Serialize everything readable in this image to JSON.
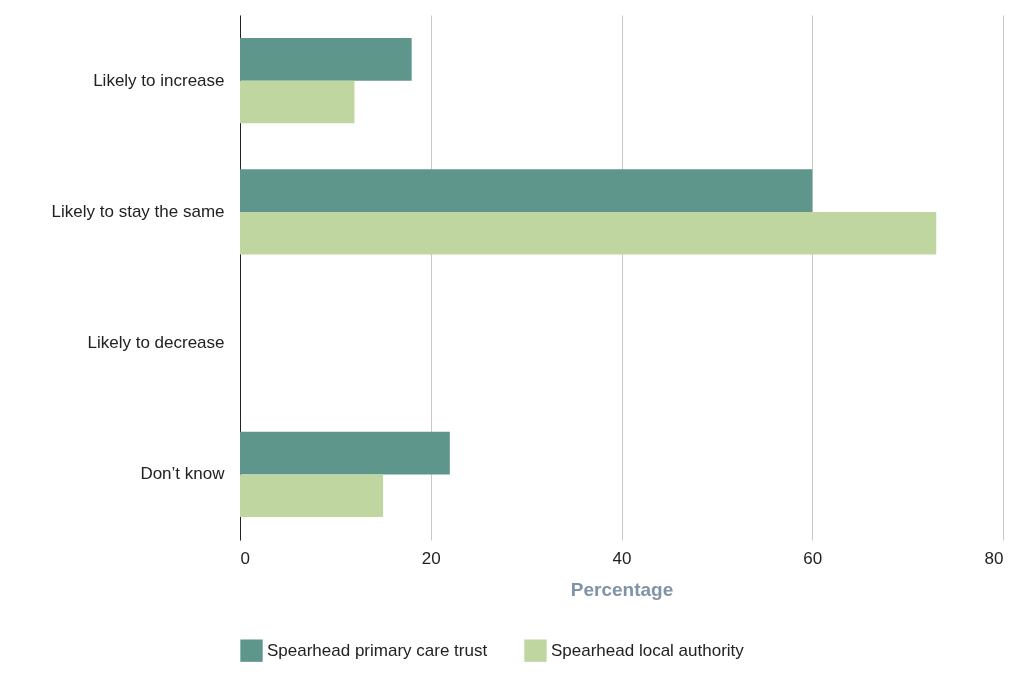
{
  "chart_data": {
    "type": "bar",
    "orientation": "horizontal",
    "xlabel": "Percentage",
    "categories": [
      "Likely to increase",
      "Likely to stay the same",
      "Likely to decrease",
      "Don’t know"
    ],
    "series": [
      {
        "name": "Spearhead primary care trust",
        "color": "#5f968b",
        "values": [
          18,
          60,
          0,
          22
        ]
      },
      {
        "name": "Spearhead local authority",
        "color": "#bfd6a0",
        "values": [
          12,
          73,
          0,
          15
        ]
      }
    ],
    "xlim": [
      0,
      80
    ],
    "xticks": [
      0,
      20,
      40,
      60,
      80
    ],
    "grid": "x",
    "legend": "bottom"
  }
}
